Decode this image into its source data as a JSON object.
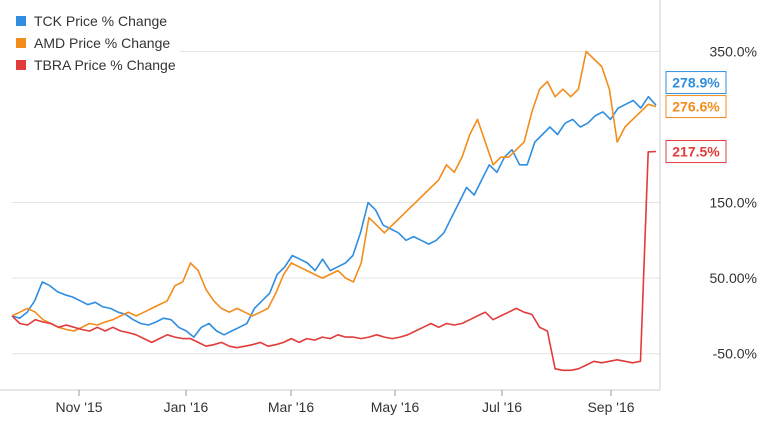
{
  "chart_data": {
    "type": "line",
    "x_ticks": [
      "Nov '15",
      "Jan '16",
      "Mar '16",
      "May '16",
      "Jul '16",
      "Sep '16"
    ],
    "y_ticks": [
      "350.0%",
      "150.0%",
      "50.00%",
      "-50.0%"
    ],
    "y_tick_values": [
      350,
      150,
      50,
      -50
    ],
    "ylim": [
      -98,
      418
    ],
    "legend_position": "top-left",
    "grid": "horizontal",
    "series": [
      {
        "name": "TCK Price % Change",
        "color": "#2f8ee0",
        "end_label": "278.9%",
        "values": [
          0,
          -3,
          5,
          20,
          45,
          40,
          32,
          28,
          25,
          20,
          15,
          18,
          12,
          10,
          5,
          2,
          -5,
          -10,
          -12,
          -8,
          -3,
          -5,
          -15,
          -20,
          -28,
          -15,
          -10,
          -20,
          -25,
          -20,
          -15,
          -10,
          10,
          20,
          30,
          55,
          65,
          80,
          75,
          70,
          60,
          75,
          60,
          65,
          70,
          80,
          110,
          150,
          140,
          120,
          115,
          110,
          100,
          105,
          100,
          95,
          100,
          110,
          130,
          150,
          170,
          160,
          180,
          200,
          190,
          210,
          220,
          200,
          200,
          230,
          240,
          250,
          240,
          255,
          260,
          250,
          255,
          265,
          270,
          260,
          275,
          280,
          285,
          275,
          290,
          279
        ]
      },
      {
        "name": "AMD Price % Change",
        "color": "#f28c1b",
        "end_label": "276.6%",
        "values": [
          0,
          5,
          10,
          5,
          -5,
          -10,
          -15,
          -18,
          -20,
          -15,
          -10,
          -12,
          -8,
          -5,
          0,
          5,
          0,
          5,
          10,
          15,
          20,
          40,
          45,
          70,
          60,
          35,
          20,
          10,
          5,
          10,
          5,
          0,
          5,
          10,
          30,
          55,
          70,
          65,
          60,
          55,
          50,
          55,
          60,
          50,
          45,
          70,
          130,
          120,
          110,
          120,
          130,
          140,
          150,
          160,
          170,
          180,
          200,
          190,
          210,
          240,
          260,
          230,
          200,
          210,
          210,
          220,
          230,
          270,
          300,
          310,
          290,
          300,
          290,
          300,
          350,
          340,
          330,
          300,
          230,
          250,
          260,
          270,
          280,
          277
        ]
      },
      {
        "name": "TBRA Price % Change",
        "color": "#e23b3b",
        "end_label": "217.5%",
        "values": [
          0,
          -10,
          -12,
          -5,
          -8,
          -10,
          -15,
          -12,
          -15,
          -18,
          -20,
          -15,
          -20,
          -15,
          -20,
          -22,
          -25,
          -30,
          -35,
          -30,
          -25,
          -28,
          -30,
          -30,
          -35,
          -40,
          -38,
          -35,
          -40,
          -42,
          -40,
          -38,
          -35,
          -40,
          -38,
          -35,
          -30,
          -35,
          -30,
          -32,
          -28,
          -30,
          -25,
          -28,
          -28,
          -30,
          -28,
          -25,
          -28,
          -30,
          -28,
          -25,
          -20,
          -15,
          -10,
          -15,
          -10,
          -12,
          -10,
          -5,
          0,
          5,
          -5,
          0,
          5,
          10,
          5,
          2,
          -15,
          -20,
          -70,
          -72,
          -72,
          -70,
          -65,
          -60,
          -62,
          -60,
          -58,
          -60,
          -62,
          -60,
          217,
          217.5
        ]
      }
    ]
  }
}
